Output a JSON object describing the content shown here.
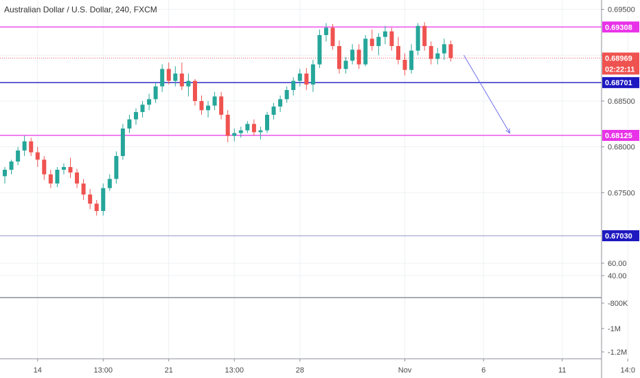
{
  "chart_data": [
    {
      "type": "candlestick",
      "title": "Australian Dollar / U.S. Dollar, 240, FXCM",
      "ylim": [
        0.6703,
        0.6955
      ],
      "yticks": [
        0.695,
        0.69,
        0.685,
        0.68,
        0.675
      ],
      "ytick_labels": [
        "0.69500",
        "0.69000",
        "0.68500",
        "0.68000",
        "0.67500"
      ],
      "xticks": [
        {
          "label": "14",
          "index": 5
        },
        {
          "label": "13:00",
          "index": 15
        },
        {
          "label": "21",
          "index": 25
        },
        {
          "label": "13:00",
          "index": 35
        },
        {
          "label": "28",
          "index": 45
        },
        {
          "label": "Nov",
          "index": 61
        },
        {
          "label": "6",
          "index": 73
        },
        {
          "label": "11",
          "index": 85
        },
        {
          "label": "14:0",
          "index": 95
        }
      ],
      "candles": [
        [
          0.6768,
          0.6778,
          0.676,
          0.6775
        ],
        [
          0.6775,
          0.6786,
          0.677,
          0.6784
        ],
        [
          0.6784,
          0.68,
          0.678,
          0.6796
        ],
        [
          0.6796,
          0.6812,
          0.679,
          0.6806
        ],
        [
          0.6806,
          0.681,
          0.679,
          0.6794
        ],
        [
          0.6794,
          0.68,
          0.6778,
          0.6786
        ],
        [
          0.6786,
          0.679,
          0.6764,
          0.677
        ],
        [
          0.677,
          0.6775,
          0.6755,
          0.676
        ],
        [
          0.676,
          0.6778,
          0.6756,
          0.6775
        ],
        [
          0.6775,
          0.6782,
          0.677,
          0.6778
        ],
        [
          0.6778,
          0.6788,
          0.6766,
          0.6772
        ],
        [
          0.6772,
          0.6776,
          0.6755,
          0.676
        ],
        [
          0.676,
          0.6765,
          0.6742,
          0.6748
        ],
        [
          0.6748,
          0.6754,
          0.6732,
          0.6738
        ],
        [
          0.6738,
          0.6742,
          0.6725,
          0.673
        ],
        [
          0.673,
          0.676,
          0.6725,
          0.6755
        ],
        [
          0.6755,
          0.677,
          0.6752,
          0.6765
        ],
        [
          0.6765,
          0.6795,
          0.676,
          0.679
        ],
        [
          0.679,
          0.6825,
          0.6786,
          0.682
        ],
        [
          0.682,
          0.6835,
          0.6815,
          0.683
        ],
        [
          0.683,
          0.6842,
          0.6824,
          0.6838
        ],
        [
          0.6838,
          0.685,
          0.6832,
          0.6846
        ],
        [
          0.6846,
          0.6858,
          0.684,
          0.6852
        ],
        [
          0.6852,
          0.687,
          0.6848,
          0.6866
        ],
        [
          0.6866,
          0.689,
          0.686,
          0.6885
        ],
        [
          0.6885,
          0.6892,
          0.6868,
          0.6872
        ],
        [
          0.6872,
          0.6888,
          0.6866,
          0.688
        ],
        [
          0.688,
          0.6892,
          0.6862,
          0.6866
        ],
        [
          0.6866,
          0.688,
          0.6855,
          0.6872
        ],
        [
          0.6872,
          0.6874,
          0.6845,
          0.685
        ],
        [
          0.685,
          0.6856,
          0.6835,
          0.684
        ],
        [
          0.684,
          0.685,
          0.6832,
          0.6845
        ],
        [
          0.6845,
          0.686,
          0.684,
          0.6855
        ],
        [
          0.6855,
          0.686,
          0.683,
          0.6835
        ],
        [
          0.6835,
          0.684,
          0.6805,
          0.6812
        ],
        [
          0.6812,
          0.682,
          0.6806,
          0.6815
        ],
        [
          0.6815,
          0.6822,
          0.681,
          0.6818
        ],
        [
          0.6818,
          0.6828,
          0.6815,
          0.6825
        ],
        [
          0.6825,
          0.683,
          0.6812,
          0.6816
        ],
        [
          0.6816,
          0.6822,
          0.6808,
          0.6818
        ],
        [
          0.6818,
          0.6838,
          0.6815,
          0.6835
        ],
        [
          0.6835,
          0.6848,
          0.683,
          0.6844
        ],
        [
          0.6844,
          0.6856,
          0.6838,
          0.6852
        ],
        [
          0.6852,
          0.6866,
          0.6848,
          0.6862
        ],
        [
          0.6862,
          0.6876,
          0.6856,
          0.6872
        ],
        [
          0.6872,
          0.6885,
          0.6866,
          0.688
        ],
        [
          0.688,
          0.6886,
          0.6862,
          0.6868
        ],
        [
          0.6868,
          0.6895,
          0.686,
          0.689
        ],
        [
          0.689,
          0.6928,
          0.6886,
          0.6922
        ],
        [
          0.6922,
          0.6935,
          0.6915,
          0.693
        ],
        [
          0.693,
          0.6934,
          0.6906,
          0.691
        ],
        [
          0.691,
          0.6916,
          0.688,
          0.6885
        ],
        [
          0.6885,
          0.6898,
          0.688,
          0.6894
        ],
        [
          0.6894,
          0.6912,
          0.689,
          0.6906
        ],
        [
          0.6906,
          0.6912,
          0.6885,
          0.689
        ],
        [
          0.689,
          0.6922,
          0.6888,
          0.6918
        ],
        [
          0.6918,
          0.6928,
          0.6905,
          0.691
        ],
        [
          0.691,
          0.6924,
          0.69,
          0.692
        ],
        [
          0.692,
          0.6932,
          0.6912,
          0.6926
        ],
        [
          0.6926,
          0.693,
          0.6905,
          0.691
        ],
        [
          0.691,
          0.692,
          0.689,
          0.6895
        ],
        [
          0.6895,
          0.6902,
          0.6878,
          0.6884
        ],
        [
          0.6884,
          0.6912,
          0.688,
          0.6905
        ],
        [
          0.6905,
          0.6935,
          0.69,
          0.6932
        ],
        [
          0.6932,
          0.6936,
          0.6905,
          0.691
        ],
        [
          0.691,
          0.6915,
          0.689,
          0.6896
        ],
        [
          0.6896,
          0.6908,
          0.689,
          0.6902
        ],
        [
          0.6902,
          0.6918,
          0.6895,
          0.6912
        ],
        [
          0.6912,
          0.6916,
          0.6893,
          0.6897
        ]
      ],
      "candle_x": [
        0,
        1,
        2,
        3,
        4,
        5,
        6,
        7,
        8,
        9,
        10,
        11,
        12,
        13,
        14,
        15,
        16,
        17,
        18,
        19,
        20,
        21,
        22,
        23,
        24,
        25,
        26,
        27,
        28,
        29,
        30,
        31,
        32,
        33,
        34,
        35,
        36,
        37,
        38,
        39,
        40,
        41,
        42,
        43,
        44,
        45,
        46,
        47,
        48,
        49,
        50,
        51,
        52,
        53,
        54,
        55,
        56,
        57,
        58,
        59,
        60,
        61,
        62,
        63,
        64,
        65,
        66,
        67,
        68
      ],
      "horizontal_levels": [
        {
          "price": 0.69308,
          "label": "0.69308",
          "color": "#e832e8"
        },
        {
          "price": 0.68701,
          "label": "0.68701",
          "color": "#1e18c0"
        },
        {
          "price": 0.68125,
          "label": "0.68125",
          "color": "#e832e8"
        },
        {
          "price": 0.6703,
          "label": "0.67030",
          "color": "#1e18c0"
        }
      ],
      "current_price": {
        "price": 0.68969,
        "label": "0.68969",
        "countdown": "02:22:11",
        "color": "#ef5350"
      },
      "projection_arrow": {
        "from_index": 70,
        "from_price": 0.69,
        "to_index": 77,
        "to_price": 0.6815,
        "color": "#6f6ff0"
      },
      "up_color": "#26a69a",
      "down_color": "#ef5350"
    },
    {
      "type": "oscillator",
      "yticks": [
        60,
        40
      ],
      "ytick_labels": [
        "60.00",
        "40.00"
      ]
    },
    {
      "type": "volume",
      "ytick_labels": [
        "-800K",
        "-1M",
        "-1.2M"
      ]
    }
  ]
}
